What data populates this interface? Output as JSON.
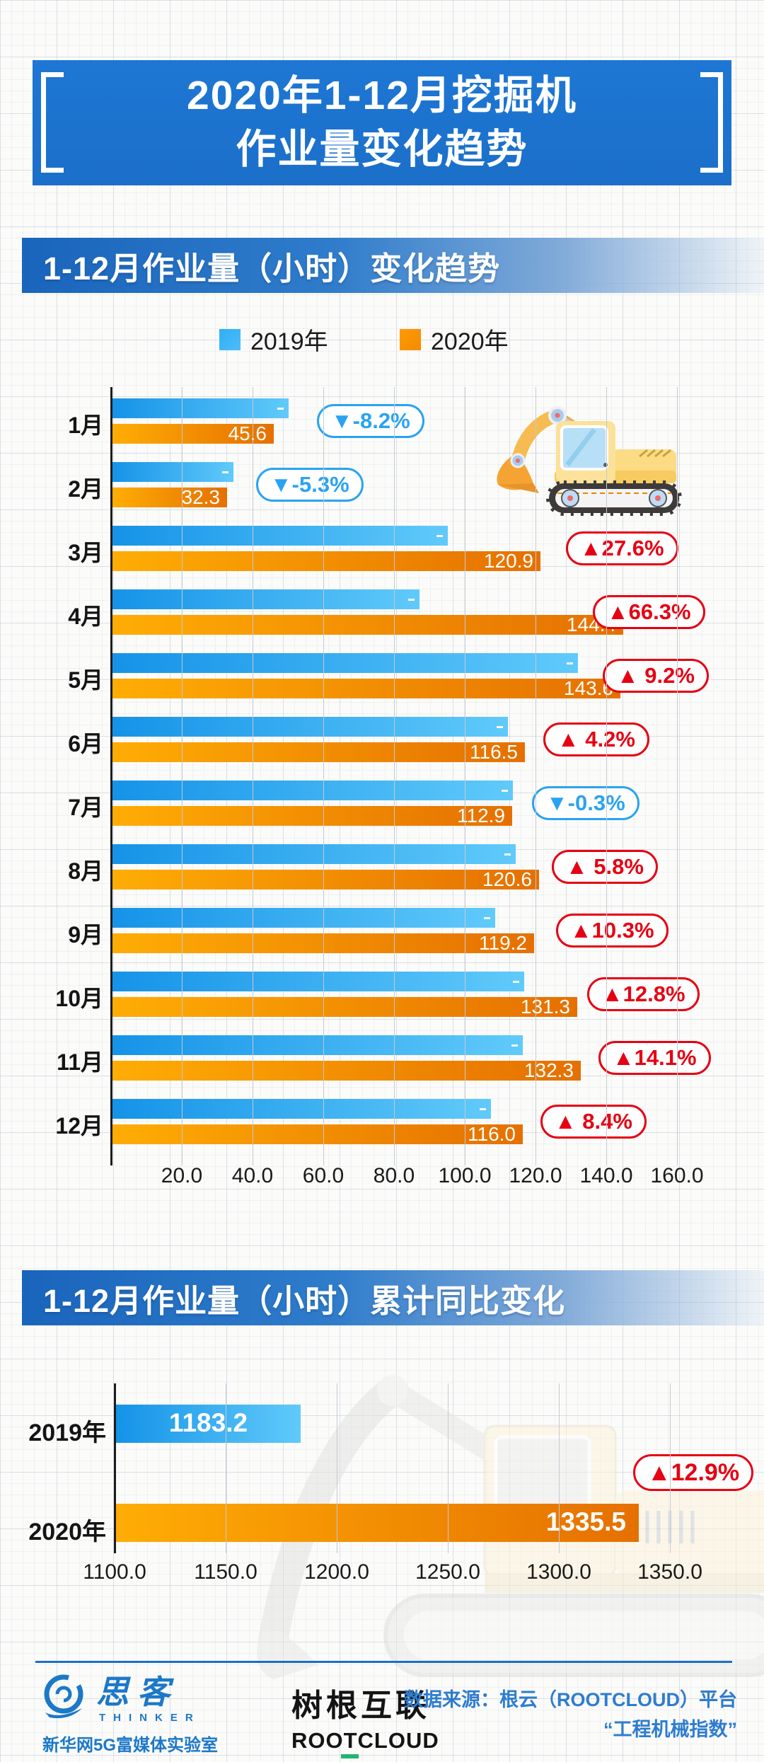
{
  "title": {
    "line1": "2020年1-12月挖掘机",
    "line2": "作业量变化趋势"
  },
  "sections": {
    "monthly_header": "1-12月作业量（小时）变化趋势",
    "cumulative_header": "1-12月作业量（小时）累计同比变化"
  },
  "colors": {
    "banner_blue": "#1C72CD",
    "bar_blue_start": "#1593E8",
    "bar_blue_end": "#60CAFA",
    "bar_orange_start": "#FFAD05",
    "bar_orange_end": "#E57000",
    "badge_up_red": "#E60012",
    "badge_down_blue": "#29A3F1",
    "footer_blue": "#1C78C8",
    "rootcloud_green": "#21B573"
  },
  "chart_data": [
    {
      "id": "monthly",
      "type": "bar",
      "orientation": "horizontal",
      "title": "1-12月作业量（小时）变化趋势",
      "categories": [
        "1月",
        "2月",
        "3月",
        "4月",
        "5月",
        "6月",
        "7月",
        "8月",
        "9月",
        "10月",
        "11月",
        "12月"
      ],
      "series": [
        {
          "name": "2019年",
          "estimated": true,
          "values": [
            49.7,
            34.1,
            94.8,
            86.8,
            131.5,
            111.8,
            113.2,
            114.0,
            108.1,
            116.4,
            116.0,
            107.0
          ]
        },
        {
          "name": "2020年",
          "values": [
            45.6,
            32.3,
            120.9,
            144.4,
            143.6,
            116.5,
            112.9,
            120.6,
            119.2,
            131.3,
            132.3,
            116.0
          ],
          "labels": [
            "45.6",
            "32.3",
            "120.9",
            "144.4",
            "143.6",
            "116.5",
            "112.9",
            "120.6",
            "119.2",
            "131.3",
            "132.3",
            "116.0"
          ]
        }
      ],
      "yoy_change_percent": [
        -8.2,
        -5.3,
        27.6,
        66.3,
        9.2,
        4.2,
        -0.3,
        5.8,
        10.3,
        12.8,
        14.1,
        8.4
      ],
      "yoy_badges": [
        {
          "text": "▼-8.2%",
          "direction": "down"
        },
        {
          "text": "▼-5.3%",
          "direction": "down"
        },
        {
          "text": "▲27.6%",
          "direction": "up"
        },
        {
          "text": "▲66.3%",
          "direction": "up"
        },
        {
          "text": "▲ 9.2%",
          "direction": "up"
        },
        {
          "text": "▲ 4.2%",
          "direction": "up"
        },
        {
          "text": "▼-0.3%",
          "direction": "down"
        },
        {
          "text": "▲ 5.8%",
          "direction": "up"
        },
        {
          "text": "▲10.3%",
          "direction": "up"
        },
        {
          "text": "▲12.8%",
          "direction": "up"
        },
        {
          "text": "▲14.1%",
          "direction": "up"
        },
        {
          "text": "▲ 8.4%",
          "direction": "up"
        }
      ],
      "xlim": [
        0,
        160
      ],
      "xticks": [
        "20.0",
        "40.0",
        "60.0",
        "80.0",
        "100.0",
        "120.0",
        "140.0",
        "160.0"
      ],
      "grid": true,
      "legend_position": "top"
    },
    {
      "id": "cumulative",
      "type": "bar",
      "orientation": "horizontal",
      "title": "1-12月作业量（小时）累计同比变化",
      "categories": [
        "2019年",
        "2020年"
      ],
      "values": [
        1183.2,
        1335.5
      ],
      "value_labels": [
        "1183.2",
        "1335.5"
      ],
      "yoy_badge": {
        "text": "▲12.9%",
        "direction": "up"
      },
      "xlim": [
        1100,
        1350
      ],
      "xticks": [
        "1100.0",
        "1150.0",
        "1200.0",
        "1250.0",
        "1300.0",
        "1350.0"
      ],
      "grid": true
    }
  ],
  "footer": {
    "thinker": {
      "name": "思客",
      "latin": "THINKER",
      "subtitle": "新华网5G富媒体实验室"
    },
    "rootcloud": {
      "name": "树根互联",
      "latin": "ROOTCLOUD"
    },
    "source_line1": "数据来源：根云（ROOTCLOUD）平台",
    "source_line2": "“工程机械指数”"
  }
}
